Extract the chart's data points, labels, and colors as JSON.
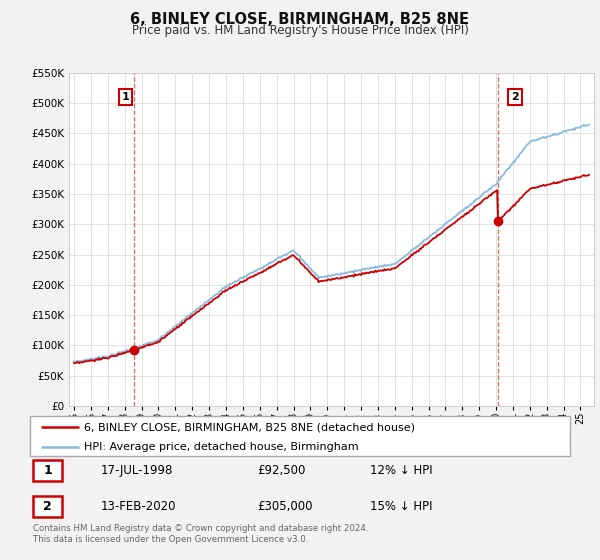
{
  "title": "6, BINLEY CLOSE, BIRMINGHAM, B25 8NE",
  "subtitle": "Price paid vs. HM Land Registry's House Price Index (HPI)",
  "ylim": [
    0,
    550000
  ],
  "yticks": [
    0,
    50000,
    100000,
    150000,
    200000,
    250000,
    300000,
    350000,
    400000,
    450000,
    500000,
    550000
  ],
  "xlim_start": 1994.7,
  "xlim_end": 2025.8,
  "sale1_date": 1998.54,
  "sale1_price": 92500,
  "sale2_date": 2020.12,
  "sale2_price": 305000,
  "property_color": "#cc0000",
  "hpi_color": "#88bbdd",
  "vline_color": "#cc0000",
  "legend_property": "6, BINLEY CLOSE, BIRMINGHAM, B25 8NE (detached house)",
  "legend_hpi": "HPI: Average price, detached house, Birmingham",
  "table_row1": [
    "1",
    "17-JUL-1998",
    "£92,500",
    "12% ↓ HPI"
  ],
  "table_row2": [
    "2",
    "13-FEB-2020",
    "£305,000",
    "15% ↓ HPI"
  ],
  "footnote": "Contains HM Land Registry data © Crown copyright and database right 2024.\nThis data is licensed under the Open Government Licence v3.0.",
  "background_color": "#f2f2f2",
  "plot_bg_color": "#ffffff",
  "grid_color": "#dddddd",
  "title_fontsize": 10.5,
  "subtitle_fontsize": 8.5
}
